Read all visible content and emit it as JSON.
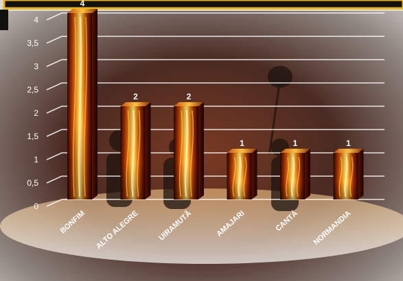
{
  "chart_data": {
    "type": "bar",
    "categories": [
      "BONFIM",
      "ALTO ALEGRE",
      "UIRAMUTÃ",
      "AMAJARI",
      "CANTÁ",
      "NORMANDIA"
    ],
    "values": [
      4,
      2,
      2,
      1,
      1,
      1
    ],
    "data_labels": [
      "4",
      "2",
      "2",
      "1",
      "1",
      "1"
    ],
    "ylim": [
      0,
      4
    ],
    "yticks": [
      "0",
      "0,5",
      "1",
      "1,5",
      "2",
      "2,5",
      "3",
      "3,5",
      "4"
    ],
    "grid": true,
    "title": "",
    "xlabel": "",
    "ylabel": "",
    "colors": {
      "frame_gold": "#f0b400",
      "fire_core": "#ffd84a",
      "fire_mid": "#f07a10",
      "fire_dark": "#3a0800",
      "grid": "#ffffff"
    }
  }
}
